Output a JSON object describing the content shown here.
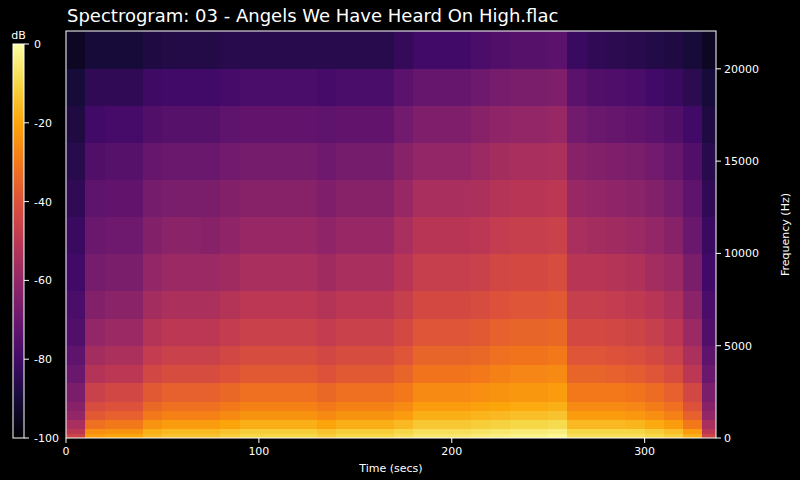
{
  "chart_data": {
    "type": "heatmap",
    "title": "Spectrogram: 03 - Angels We Have Heard On High.flac",
    "x_label": "Time (secs)",
    "y_label": "Frequency (Hz)",
    "colorbar_label": "dB",
    "xlim": [
      0,
      337
    ],
    "ylim": [
      0,
      22050
    ],
    "xticks": [
      0,
      100,
      200,
      300
    ],
    "yticks": [
      0,
      5000,
      10000,
      15000,
      20000
    ],
    "color_range": [
      -100,
      0
    ],
    "color_ticks": [
      0,
      -20,
      -40,
      -60,
      -80,
      -100
    ],
    "x_bins": [
      0,
      10,
      20,
      30,
      40,
      50,
      60,
      70,
      80,
      90,
      100,
      110,
      120,
      130,
      140,
      150,
      160,
      170,
      180,
      190,
      200,
      210,
      220,
      230,
      240,
      250,
      260,
      270,
      280,
      290,
      300,
      310,
      320,
      330,
      337
    ],
    "y_bins": [
      0,
      250,
      500,
      1000,
      1500,
      2000,
      3000,
      4000,
      5000,
      6500,
      8000,
      10000,
      12000,
      14000,
      16000,
      18000,
      20000,
      22050
    ],
    "cells": [
      [
        -45,
        -22,
        -20,
        -20,
        -16,
        -14,
        -14,
        -14,
        -12,
        -10,
        -10,
        -10,
        -10,
        -12,
        -10,
        -10,
        -10,
        -8,
        -6,
        -6,
        -6,
        -5,
        -4,
        -3,
        -3,
        -2,
        -8,
        -8,
        -8,
        -8,
        -10,
        -12,
        -18,
        -45
      ],
      [
        -50,
        -25,
        -24,
        -24,
        -18,
        -16,
        -16,
        -16,
        -14,
        -12,
        -12,
        -12,
        -12,
        -14,
        -12,
        -12,
        -12,
        -10,
        -8,
        -8,
        -8,
        -7,
        -6,
        -5,
        -5,
        -4,
        -10,
        -10,
        -10,
        -10,
        -12,
        -15,
        -22,
        -50
      ],
      [
        -55,
        -32,
        -30,
        -30,
        -24,
        -22,
        -22,
        -22,
        -20,
        -18,
        -18,
        -18,
        -18,
        -20,
        -18,
        -18,
        -18,
        -16,
        -13,
        -13,
        -13,
        -12,
        -11,
        -10,
        -10,
        -9,
        -16,
        -16,
        -16,
        -17,
        -19,
        -22,
        -30,
        -55
      ],
      [
        -60,
        -38,
        -36,
        -36,
        -30,
        -28,
        -28,
        -28,
        -26,
        -24,
        -24,
        -24,
        -24,
        -26,
        -24,
        -24,
        -24,
        -22,
        -18,
        -18,
        -18,
        -17,
        -16,
        -15,
        -15,
        -14,
        -22,
        -22,
        -22,
        -23,
        -25,
        -28,
        -36,
        -60
      ],
      [
        -63,
        -42,
        -40,
        -40,
        -34,
        -32,
        -32,
        -32,
        -30,
        -28,
        -28,
        -28,
        -28,
        -30,
        -28,
        -28,
        -28,
        -26,
        -22,
        -22,
        -22,
        -21,
        -20,
        -19,
        -19,
        -18,
        -26,
        -26,
        -26,
        -27,
        -29,
        -32,
        -40,
        -63
      ],
      [
        -66,
        -46,
        -44,
        -44,
        -38,
        -36,
        -36,
        -36,
        -34,
        -32,
        -32,
        -32,
        -32,
        -34,
        -32,
        -32,
        -32,
        -30,
        -26,
        -26,
        -26,
        -25,
        -24,
        -23,
        -23,
        -22,
        -30,
        -30,
        -30,
        -31,
        -33,
        -36,
        -44,
        -66
      ],
      [
        -70,
        -52,
        -50,
        -50,
        -44,
        -42,
        -42,
        -42,
        -40,
        -38,
        -38,
        -38,
        -38,
        -40,
        -38,
        -38,
        -38,
        -35,
        -31,
        -31,
        -31,
        -30,
        -28,
        -27,
        -27,
        -26,
        -35,
        -35,
        -36,
        -37,
        -39,
        -42,
        -50,
        -70
      ],
      [
        -73,
        -56,
        -54,
        -54,
        -48,
        -46,
        -46,
        -46,
        -44,
        -42,
        -42,
        -42,
        -42,
        -44,
        -42,
        -42,
        -42,
        -39,
        -35,
        -35,
        -35,
        -34,
        -32,
        -31,
        -31,
        -30,
        -39,
        -39,
        -40,
        -41,
        -43,
        -46,
        -54,
        -73
      ],
      [
        -76,
        -60,
        -58,
        -58,
        -52,
        -50,
        -50,
        -50,
        -48,
        -46,
        -46,
        -46,
        -46,
        -48,
        -46,
        -46,
        -46,
        -43,
        -39,
        -39,
        -39,
        -38,
        -36,
        -35,
        -35,
        -34,
        -43,
        -43,
        -44,
        -45,
        -47,
        -50,
        -58,
        -76
      ],
      [
        -78,
        -64,
        -62,
        -62,
        -56,
        -54,
        -54,
        -54,
        -52,
        -50,
        -50,
        -50,
        -50,
        -52,
        -50,
        -50,
        -50,
        -47,
        -43,
        -43,
        -43,
        -42,
        -40,
        -39,
        -39,
        -38,
        -47,
        -47,
        -48,
        -49,
        -51,
        -54,
        -62,
        -78
      ],
      [
        -80,
        -67,
        -66,
        -66,
        -60,
        -58,
        -58,
        -58,
        -57,
        -55,
        -55,
        -55,
        -55,
        -57,
        -55,
        -55,
        -55,
        -51,
        -47,
        -47,
        -47,
        -46,
        -44,
        -43,
        -43,
        -42,
        -51,
        -51,
        -52,
        -53,
        -56,
        -58,
        -66,
        -80
      ],
      [
        -82,
        -70,
        -69,
        -69,
        -64,
        -62,
        -62,
        -63,
        -61,
        -59,
        -59,
        -59,
        -59,
        -61,
        -59,
        -59,
        -59,
        -55,
        -51,
        -51,
        -51,
        -50,
        -48,
        -47,
        -47,
        -46,
        -55,
        -56,
        -57,
        -58,
        -60,
        -63,
        -70,
        -82
      ],
      [
        -84,
        -73,
        -72,
        -72,
        -67,
        -66,
        -66,
        -66,
        -64,
        -63,
        -63,
        -63,
        -63,
        -65,
        -63,
        -63,
        -63,
        -59,
        -55,
        -55,
        -55,
        -54,
        -52,
        -51,
        -51,
        -50,
        -59,
        -60,
        -61,
        -62,
        -64,
        -67,
        -73,
        -84
      ],
      [
        -86,
        -76,
        -75,
        -75,
        -71,
        -70,
        -70,
        -70,
        -68,
        -67,
        -67,
        -67,
        -67,
        -69,
        -67,
        -67,
        -67,
        -63,
        -60,
        -60,
        -60,
        -58,
        -56,
        -55,
        -55,
        -54,
        -63,
        -64,
        -65,
        -66,
        -68,
        -71,
        -76,
        -86
      ],
      [
        -88,
        -80,
        -79,
        -79,
        -76,
        -75,
        -75,
        -75,
        -73,
        -72,
        -72,
        -72,
        -72,
        -73,
        -72,
        -72,
        -72,
        -68,
        -65,
        -65,
        -65,
        -63,
        -61,
        -60,
        -60,
        -59,
        -68,
        -70,
        -71,
        -72,
        -74,
        -76,
        -80,
        -88
      ],
      [
        -90,
        -84,
        -84,
        -84,
        -81,
        -80,
        -80,
        -80,
        -79,
        -78,
        -78,
        -78,
        -78,
        -79,
        -78,
        -78,
        -78,
        -74,
        -71,
        -71,
        -71,
        -69,
        -67,
        -66,
        -66,
        -65,
        -74,
        -76,
        -77,
        -78,
        -80,
        -82,
        -85,
        -90
      ],
      [
        -94,
        -90,
        -90,
        -90,
        -88,
        -87,
        -87,
        -87,
        -86,
        -86,
        -86,
        -86,
        -86,
        -86,
        -86,
        -86,
        -86,
        -83,
        -80,
        -80,
        -80,
        -78,
        -76,
        -75,
        -75,
        -74,
        -82,
        -84,
        -85,
        -86,
        -87,
        -88,
        -90,
        -94
      ]
    ]
  }
}
